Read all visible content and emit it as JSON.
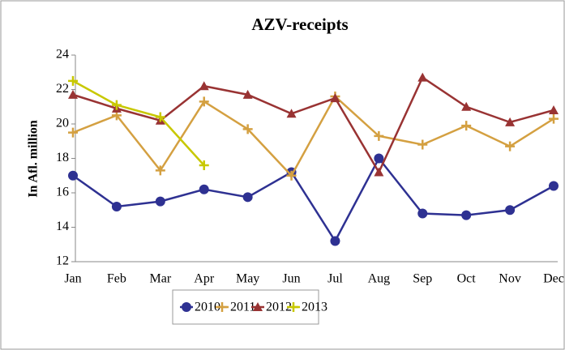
{
  "chart_data": {
    "type": "line",
    "title": "AZV-receipts",
    "y_label": "In Afl. million",
    "categories": [
      "Jan",
      "Feb",
      "Mar",
      "Apr",
      "May",
      "Jun",
      "Jul",
      "Aug",
      "Sep",
      "Oct",
      "Nov",
      "Dec"
    ],
    "series": [
      {
        "name": "2010",
        "color": "#2e3192",
        "marker": "circle",
        "values": [
          17.0,
          15.2,
          15.5,
          16.2,
          15.75,
          17.2,
          13.2,
          18.0,
          14.8,
          14.7,
          15.0,
          16.4
        ]
      },
      {
        "name": "2011",
        "color": "#d4a041",
        "marker": "plus",
        "values": [
          19.5,
          20.5,
          17.3,
          21.3,
          19.7,
          17.0,
          21.6,
          19.3,
          18.8,
          19.9,
          18.7,
          20.3
        ]
      },
      {
        "name": "2012",
        "color": "#993333",
        "marker": "triangle",
        "values": [
          21.7,
          20.9,
          20.2,
          22.2,
          21.7,
          20.6,
          21.5,
          17.2,
          22.7,
          21.0,
          20.1,
          20.8
        ]
      },
      {
        "name": "2013",
        "color": "#c8c800",
        "marker": "plus",
        "values": [
          22.5,
          21.1,
          20.4,
          17.6,
          null,
          null,
          null,
          null,
          null,
          null,
          null,
          null
        ]
      }
    ],
    "ylim": [
      12,
      24
    ],
    "yticks": [
      12,
      14,
      16,
      18,
      20,
      22,
      24
    ],
    "grid": false,
    "legend": "bottom"
  }
}
